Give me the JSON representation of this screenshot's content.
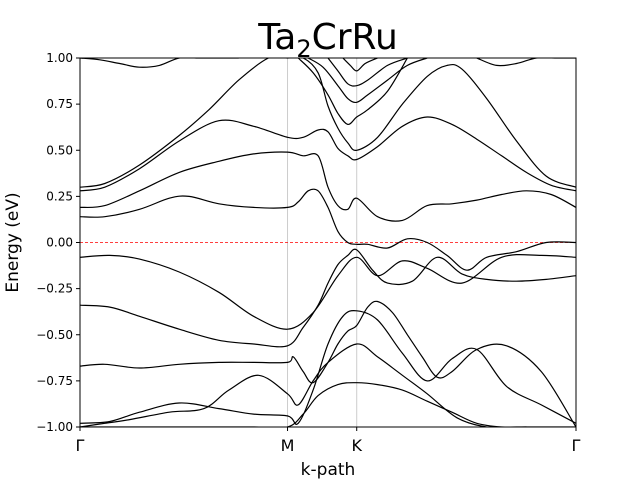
{
  "chart_data": {
    "type": "line",
    "title_main": "Ta",
    "title_sub": "2",
    "title_rest": "CrRu",
    "xlabel": "k-path",
    "ylabel": "Energy (eV)",
    "ylim": [
      -1.0,
      1.0
    ],
    "yticks": [
      "−1.00",
      "−0.75",
      "−0.50",
      "−0.25",
      "0.00",
      "0.25",
      "0.50",
      "0.75",
      "1.00"
    ],
    "ytick_values": [
      -1.0,
      -0.75,
      -0.5,
      -0.25,
      0.0,
      0.25,
      0.5,
      0.75,
      1.0
    ],
    "xlim": [
      0,
      1
    ],
    "kpoints": [
      {
        "label": "Γ",
        "x": 0.0
      },
      {
        "label": "M",
        "x": 0.4184
      },
      {
        "label": "K",
        "x": 0.5579
      },
      {
        "label": "Γ",
        "x": 1.0
      }
    ],
    "fermi_level": 0.0,
    "fermi_color": "#ff0000",
    "band_color": "#000000",
    "grid": "vertical lines at k-points",
    "bands": [
      {
        "x": [
          0.0,
          0.06,
          0.12,
          0.2,
          0.28,
          0.35,
          0.4184,
          0.47,
          0.52,
          0.5579,
          0.6,
          0.65,
          0.7,
          0.77,
          0.85,
          0.93,
          1.0
        ],
        "y": [
          -0.08,
          -0.07,
          -0.09,
          -0.16,
          -0.27,
          -0.4,
          -0.47,
          -0.38,
          -0.18,
          -0.08,
          -0.18,
          -0.1,
          -0.14,
          -0.22,
          -0.08,
          -0.07,
          -0.08
        ]
      },
      {
        "x": [
          0.0,
          0.06,
          0.12,
          0.2,
          0.28,
          0.35,
          0.4184,
          0.45,
          0.48,
          0.5,
          0.52,
          0.54,
          0.5579,
          0.59,
          0.62,
          0.67,
          0.72,
          0.77,
          0.82,
          0.88,
          0.94,
          1.0
        ],
        "y": [
          -0.34,
          -0.35,
          -0.4,
          -0.47,
          -0.53,
          -0.55,
          -0.56,
          -0.46,
          -0.34,
          -0.22,
          -0.12,
          -0.07,
          -0.04,
          -0.15,
          -0.22,
          -0.21,
          -0.08,
          -0.17,
          -0.2,
          -0.21,
          -0.2,
          -0.18
        ]
      },
      {
        "x": [
          0.0,
          0.06,
          0.12,
          0.2,
          0.28,
          0.35,
          0.4184,
          0.44,
          0.47,
          0.5,
          0.53,
          0.5579,
          0.6,
          0.65,
          0.7,
          0.75,
          0.8,
          0.86,
          0.93,
          1.0
        ],
        "y": [
          -0.98,
          -0.97,
          -0.92,
          -0.87,
          -0.9,
          -0.93,
          -0.94,
          -0.98,
          -0.8,
          -0.55,
          -0.4,
          -0.37,
          -0.42,
          -0.6,
          -0.75,
          -0.63,
          -0.58,
          -0.78,
          -0.88,
          -0.98
        ]
      },
      {
        "x": [
          0.0,
          0.05,
          0.12,
          0.2,
          0.28,
          0.35,
          0.4184,
          0.43,
          0.45,
          0.47,
          0.5,
          0.52,
          0.54,
          0.5579,
          0.58,
          0.6,
          0.63,
          0.66,
          0.69,
          0.72,
          0.75,
          0.8,
          0.86,
          0.93,
          1.0
        ],
        "y": [
          -0.67,
          -0.66,
          -0.68,
          -0.66,
          -0.65,
          -0.65,
          -0.65,
          -0.62,
          -0.7,
          -0.76,
          -0.65,
          -0.55,
          -0.48,
          -0.45,
          -0.35,
          -0.32,
          -0.38,
          -0.5,
          -0.62,
          -0.73,
          -0.7,
          -0.58,
          -0.56,
          -0.7,
          -1.0
        ]
      },
      {
        "x": [
          0.0,
          0.05,
          0.1,
          0.18,
          0.25,
          0.3,
          0.36,
          0.4184,
          0.44,
          0.47,
          0.5,
          0.5579,
          0.6,
          0.65,
          0.7,
          0.76,
          0.82,
          0.88,
          0.95,
          1.0
        ],
        "y": [
          -1.0,
          -0.98,
          -0.96,
          -0.92,
          -0.9,
          -0.8,
          -0.72,
          -0.82,
          -0.88,
          -0.75,
          -0.65,
          -0.55,
          -0.62,
          -0.72,
          -0.82,
          -0.95,
          -1.0,
          -1.0,
          -1.0,
          -1.0
        ]
      },
      {
        "x": [
          0.0,
          0.05,
          0.12,
          0.2,
          0.28,
          0.35,
          0.4184,
          0.45,
          0.48,
          0.52,
          0.5579,
          0.6,
          0.65,
          0.7,
          0.75,
          0.8,
          0.85,
          0.9
        ],
        "y": [
          -1.0,
          -1.0,
          -1.0,
          -1.0,
          -1.0,
          -1.0,
          -1.0,
          -0.93,
          -0.83,
          -0.77,
          -0.76,
          -0.77,
          -0.8,
          -0.86,
          -0.92,
          -0.98,
          -1.0,
          -1.0
        ]
      },
      {
        "x": [
          0.0,
          0.05,
          0.12,
          0.18,
          0.22,
          0.28,
          0.35,
          0.4184,
          0.44,
          0.46,
          0.48,
          0.5,
          0.52,
          0.54,
          0.5579,
          0.58,
          0.62,
          0.66,
          0.7,
          0.74,
          0.78,
          0.82,
          0.88,
          0.94,
          1.0
        ],
        "y": [
          0.14,
          0.14,
          0.18,
          0.24,
          0.25,
          0.21,
          0.19,
          0.19,
          0.22,
          0.28,
          0.28,
          0.19,
          0.06,
          0.0,
          -0.01,
          -0.01,
          -0.03,
          0.02,
          0.0,
          -0.07,
          -0.15,
          -0.08,
          -0.05,
          0.0,
          0.0
        ]
      },
      {
        "x": [
          0.0,
          0.05,
          0.12,
          0.2,
          0.28,
          0.35,
          0.4184,
          0.45,
          0.48,
          0.5,
          0.52,
          0.54,
          0.5579,
          0.6,
          0.65,
          0.7,
          0.75,
          0.8,
          0.85,
          0.9,
          0.95,
          1.0
        ],
        "y": [
          0.19,
          0.2,
          0.28,
          0.38,
          0.44,
          0.48,
          0.49,
          0.47,
          0.47,
          0.3,
          0.2,
          0.18,
          0.24,
          0.14,
          0.12,
          0.2,
          0.21,
          0.23,
          0.26,
          0.28,
          0.26,
          0.19
        ]
      },
      {
        "x": [
          0.0,
          0.05,
          0.12,
          0.2,
          0.28,
          0.35,
          0.4184,
          0.45,
          0.48,
          0.5,
          0.52,
          0.54,
          0.5579,
          0.6,
          0.65,
          0.7,
          0.75,
          0.8,
          0.85,
          0.9,
          0.95,
          1.0
        ],
        "y": [
          0.28,
          0.3,
          0.4,
          0.55,
          0.66,
          0.63,
          0.57,
          0.57,
          0.61,
          0.6,
          0.51,
          0.47,
          0.45,
          0.52,
          0.63,
          0.68,
          0.64,
          0.56,
          0.47,
          0.38,
          0.31,
          0.28
        ]
      },
      {
        "x": [
          0.0,
          0.05,
          0.12,
          0.2,
          0.26,
          0.32,
          0.38,
          0.4184,
          0.45,
          0.48,
          0.5,
          0.52,
          0.54,
          0.5579,
          0.6,
          0.65,
          0.7,
          0.74,
          0.77,
          0.82,
          0.88,
          0.94,
          1.0
        ],
        "y": [
          0.3,
          0.32,
          0.42,
          0.58,
          0.72,
          0.88,
          1.0,
          1.0,
          1.0,
          0.92,
          0.74,
          0.62,
          0.54,
          0.5,
          0.57,
          0.75,
          0.9,
          0.96,
          0.94,
          0.78,
          0.55,
          0.36,
          0.3
        ]
      },
      {
        "x": [
          0.0,
          0.04,
          0.08,
          0.12,
          0.16,
          0.2,
          0.24,
          0.28,
          0.32
        ],
        "y": [
          1.0,
          0.99,
          0.97,
          0.95,
          0.96,
          1.0,
          1.0,
          1.0,
          1.0
        ]
      },
      {
        "x": [
          0.44,
          0.47,
          0.5,
          0.52,
          0.54,
          0.5579,
          0.58,
          0.62,
          0.66
        ],
        "y": [
          1.0,
          0.92,
          0.8,
          0.7,
          0.64,
          0.68,
          0.72,
          0.82,
          1.0
        ]
      },
      {
        "x": [
          0.46,
          0.49,
          0.52,
          0.54,
          0.5579,
          0.58,
          0.62,
          0.66,
          0.7
        ],
        "y": [
          1.0,
          0.95,
          0.85,
          0.78,
          0.76,
          0.8,
          0.88,
          0.96,
          1.0
        ]
      },
      {
        "x": [
          0.5,
          0.52,
          0.54,
          0.5579,
          0.58,
          0.62,
          0.66
        ],
        "y": [
          1.0,
          0.93,
          0.86,
          0.85,
          0.88,
          0.96,
          1.0
        ]
      },
      {
        "x": [
          0.53,
          0.545,
          0.5579,
          0.575,
          0.6
        ],
        "y": [
          1.0,
          0.96,
          0.93,
          0.97,
          1.0
        ]
      },
      {
        "x": [
          0.8,
          0.84,
          0.88,
          0.92,
          0.96,
          1.0
        ],
        "y": [
          1.0,
          0.96,
          0.97,
          1.0,
          1.0,
          1.0
        ]
      }
    ]
  }
}
